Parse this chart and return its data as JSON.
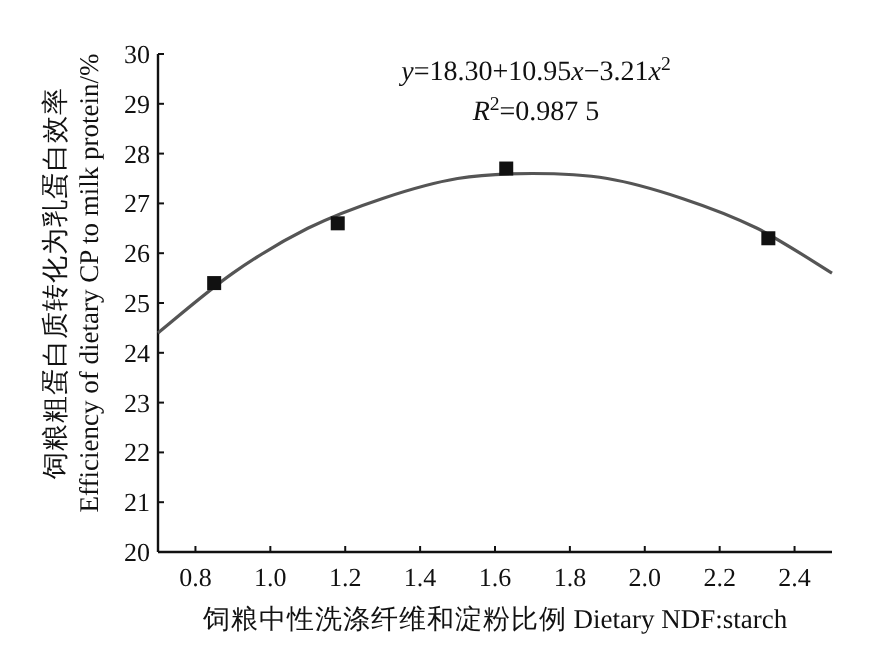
{
  "chart_data": {
    "type": "scatter",
    "xlabel": "饲粮中性洗涤纤维和淀粉比例  Dietary NDF:starch",
    "ylabel": "饲粮粗蛋白质转化为乳蛋白效率 Efficiency of dietary CP to milk protein/%",
    "annotations": [
      "y=18.30+10.95x−3.21x$^{2}$",
      "R$^{2}$=0.987 5"
    ],
    "xlim": [
      0.7,
      2.5
    ],
    "ylim": [
      20,
      30
    ],
    "xticks": [
      0.8,
      {
        "value": 1,
        "label": "1.0"
      },
      1.2,
      1.4,
      1.6,
      1.8,
      {
        "value": 2,
        "label": "2.0"
      },
      2.2,
      2.4
    ],
    "yticks": [
      20,
      21,
      22,
      23,
      24,
      25,
      26,
      27,
      28,
      29,
      30
    ],
    "grid": false,
    "series": [
      {
        "type": "scatter",
        "marker": "square",
        "color": "#111111",
        "x": [
          0.85,
          1.18,
          1.63,
          2.33
        ],
        "values": [
          25.4,
          26.6,
          27.7,
          26.3
        ]
      },
      {
        "type": "line",
        "marker": "none",
        "line_style": "solid",
        "color": "#555555",
        "x": [
          0.7,
          0.9,
          1.1,
          1.3,
          1.5,
          1.7,
          1.9,
          2.1,
          2.3,
          2.5
        ],
        "values": [
          24.4,
          25.6,
          26.5,
          27.1,
          27.5,
          27.6,
          27.5,
          27.1,
          26.5,
          25.6
        ]
      }
    ]
  }
}
